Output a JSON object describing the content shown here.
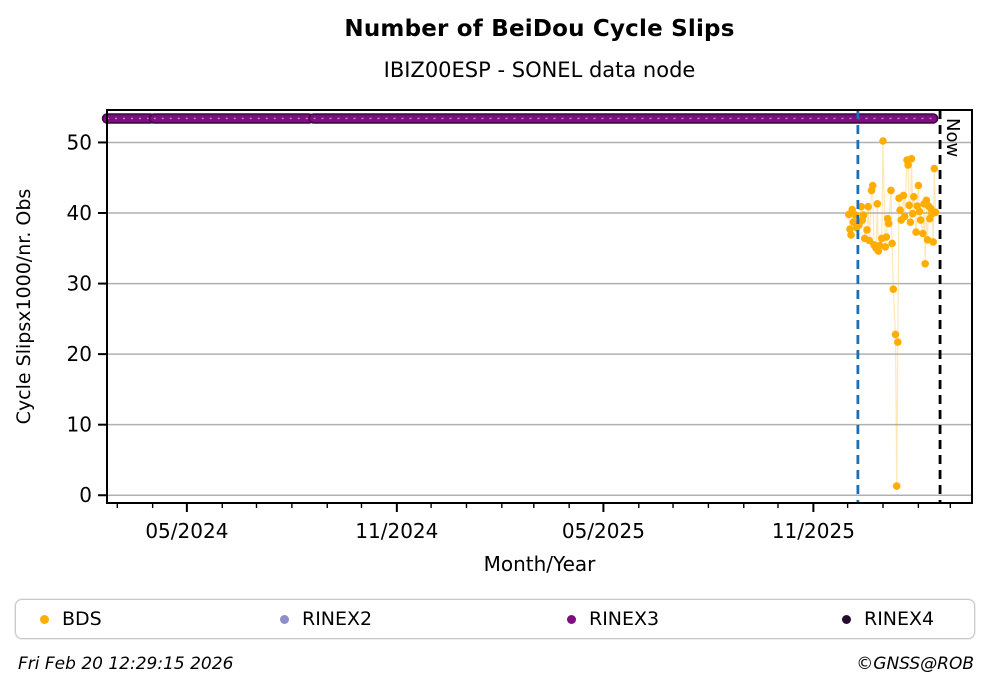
{
  "title": "Number of BeiDou Cycle Slips",
  "subtitle": "IBIZ00ESP - SONEL data node",
  "footer": {
    "timestamp": "Fri Feb 20 12:29:15 2026",
    "credit": "©GNSS@ROB"
  },
  "legend": {
    "items": [
      {
        "label": "BDS",
        "color": "#FFAD00"
      },
      {
        "label": "RINEX2",
        "color": "#8E8ECC"
      },
      {
        "label": "RINEX3",
        "color": "#7E0D80"
      },
      {
        "label": "RINEX4",
        "color": "#260B30"
      }
    ]
  },
  "chart_data": {
    "type": "scatter",
    "title": "Number of BeiDou Cycle Slips",
    "subtitle": "IBIZ00ESP - SONEL data node",
    "xlabel": "Month/Year",
    "ylabel": "Cycle Slipsx1000/nr. Obs",
    "grid": "horizontal-only",
    "grid_color": "#b0b0b0",
    "x_domain": [
      "2024-02-21",
      "2026-03-20"
    ],
    "ylim": [
      -1.1,
      54.6
    ],
    "yticks": [
      0,
      10,
      20,
      30,
      40,
      50
    ],
    "xticks_major": [
      {
        "date": "2024-05-01",
        "label": "05/2024"
      },
      {
        "date": "2024-11-01",
        "label": "11/2024"
      },
      {
        "date": "2025-05-01",
        "label": "05/2025"
      },
      {
        "date": "2025-11-01",
        "label": "11/2025"
      }
    ],
    "xticks_minor": "monthly",
    "now_line": {
      "date": "2026-02-20",
      "label": "Now",
      "color": "#000000",
      "style": "dashed"
    },
    "event_line": {
      "date": "2025-12-10",
      "color": "#1A6FB5",
      "style": "dashed"
    },
    "rinex3_band": {
      "name": "RINEX3",
      "value": 53.4,
      "color": "#7E0D80",
      "edge_color": "#47064A",
      "segments": [
        [
          "2024-02-21",
          "2024-03-30"
        ],
        [
          "2024-04-02",
          "2024-08-16"
        ],
        [
          "2024-08-20",
          "2026-02-14"
        ]
      ]
    },
    "series": [
      {
        "name": "BDS",
        "color": "#FFAD00",
        "marker": "circle",
        "points": [
          {
            "date": "2025-12-02",
            "value": 39.8
          },
          {
            "date": "2025-12-03",
            "value": 37.7
          },
          {
            "date": "2025-12-04",
            "value": 36.9
          },
          {
            "date": "2025-12-05",
            "value": 40.5
          },
          {
            "date": "2025-12-06",
            "value": 38.7
          },
          {
            "date": "2025-12-08",
            "value": 39.7
          },
          {
            "date": "2025-12-09",
            "value": 37.9
          },
          {
            "date": "2025-12-11",
            "value": 38.3
          },
          {
            "date": "2025-12-13",
            "value": 40.9
          },
          {
            "date": "2025-12-14",
            "value": 39.0
          },
          {
            "date": "2025-12-15",
            "value": 39.7
          },
          {
            "date": "2025-12-16",
            "value": 36.4
          },
          {
            "date": "2025-12-18",
            "value": 37.6
          },
          {
            "date": "2025-12-19",
            "value": 40.9
          },
          {
            "date": "2025-12-20",
            "value": 36.1
          },
          {
            "date": "2025-12-22",
            "value": 43.2
          },
          {
            "date": "2025-12-23",
            "value": 43.9
          },
          {
            "date": "2025-12-24",
            "value": 35.5
          },
          {
            "date": "2025-12-26",
            "value": 35.0
          },
          {
            "date": "2025-12-27",
            "value": 41.3
          },
          {
            "date": "2025-12-28",
            "value": 34.6
          },
          {
            "date": "2025-12-29",
            "value": 35.4
          },
          {
            "date": "2025-12-31",
            "value": 36.4
          },
          {
            "date": "2026-01-01",
            "value": 50.2
          },
          {
            "date": "2026-01-03",
            "value": 35.2
          },
          {
            "date": "2026-01-04",
            "value": 36.6
          },
          {
            "date": "2026-01-05",
            "value": 39.2
          },
          {
            "date": "2026-01-06",
            "value": 38.5
          },
          {
            "date": "2026-01-08",
            "value": 43.2
          },
          {
            "date": "2026-01-09",
            "value": 35.7
          },
          {
            "date": "2026-01-10",
            "value": 29.2
          },
          {
            "date": "2026-01-12",
            "value": 22.8
          },
          {
            "date": "2026-01-13",
            "value": 1.3
          },
          {
            "date": "2026-01-14",
            "value": 21.7
          },
          {
            "date": "2026-01-15",
            "value": 42.1
          },
          {
            "date": "2026-01-16",
            "value": 40.4
          },
          {
            "date": "2026-01-17",
            "value": 39.0
          },
          {
            "date": "2026-01-19",
            "value": 42.5
          },
          {
            "date": "2026-01-20",
            "value": 39.5
          },
          {
            "date": "2026-01-22",
            "value": 47.5
          },
          {
            "date": "2026-01-23",
            "value": 46.8
          },
          {
            "date": "2026-01-24",
            "value": 41.1
          },
          {
            "date": "2026-01-25",
            "value": 38.7
          },
          {
            "date": "2026-01-26",
            "value": 47.7
          },
          {
            "date": "2026-01-27",
            "value": 39.9
          },
          {
            "date": "2026-01-28",
            "value": 42.3
          },
          {
            "date": "2026-01-30",
            "value": 37.3
          },
          {
            "date": "2026-01-31",
            "value": 41.0
          },
          {
            "date": "2026-02-01",
            "value": 43.9
          },
          {
            "date": "2026-02-02",
            "value": 40.2
          },
          {
            "date": "2026-02-03",
            "value": 39.0
          },
          {
            "date": "2026-02-05",
            "value": 37.1
          },
          {
            "date": "2026-02-06",
            "value": 41.3
          },
          {
            "date": "2026-02-07",
            "value": 32.8
          },
          {
            "date": "2026-02-08",
            "value": 41.8
          },
          {
            "date": "2026-02-09",
            "value": 36.2
          },
          {
            "date": "2026-02-10",
            "value": 41.0
          },
          {
            "date": "2026-02-11",
            "value": 39.2
          },
          {
            "date": "2026-02-12",
            "value": 40.6
          },
          {
            "date": "2026-02-13",
            "value": 39.9
          },
          {
            "date": "2026-02-14",
            "value": 35.9
          },
          {
            "date": "2026-02-15",
            "value": 46.3
          },
          {
            "date": "2026-02-16",
            "value": 40.1
          }
        ]
      },
      {
        "name": "RINEX2",
        "color": "#8E8ECC",
        "points": []
      },
      {
        "name": "RINEX4",
        "color": "#260B30",
        "points": []
      }
    ]
  }
}
